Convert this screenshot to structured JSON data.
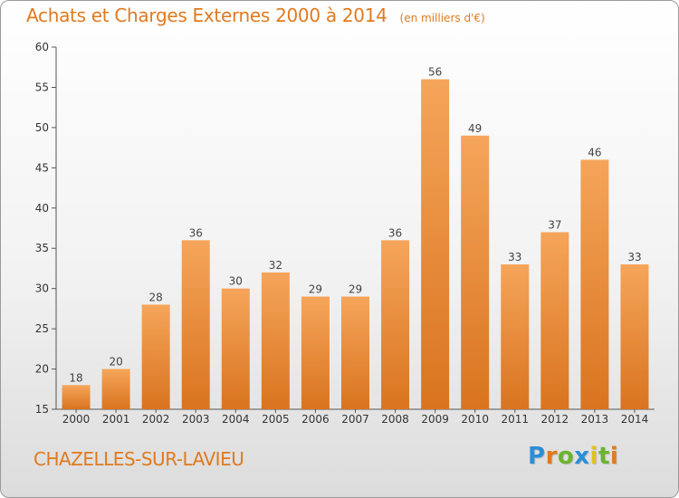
{
  "header": {
    "title": "Achats et Charges Externes 2000 à 2014",
    "subtitle": "(en milliers d'€)"
  },
  "footer": {
    "place": "CHAZELLES-SUR-LAVIEU",
    "logo": "Proxiti",
    "logo_colors": [
      "#2a8fd6",
      "#e07a1f",
      "#6bb42f",
      "#2a8fd6",
      "#e0c21f",
      "#6bb42f",
      "#e07a1f"
    ]
  },
  "chart_data": {
    "type": "bar",
    "title": "Achats et Charges Externes 2000 à 2014",
    "subtitle": "(en milliers d'€)",
    "xlabel": "",
    "ylabel": "",
    "categories": [
      "2000",
      "2001",
      "2002",
      "2003",
      "2004",
      "2005",
      "2006",
      "2007",
      "2008",
      "2009",
      "2010",
      "2011",
      "2012",
      "2013",
      "2014"
    ],
    "values": [
      18,
      20,
      28,
      36,
      30,
      32,
      29,
      29,
      36,
      56,
      49,
      33,
      37,
      46,
      33
    ],
    "ylim": [
      15,
      60
    ],
    "yticks": [
      15,
      20,
      25,
      30,
      35,
      40,
      45,
      50,
      55,
      60
    ],
    "grid": false,
    "bar_color": "#f0953a",
    "bar_color_dark": "#d9741f",
    "data_labels": true
  }
}
